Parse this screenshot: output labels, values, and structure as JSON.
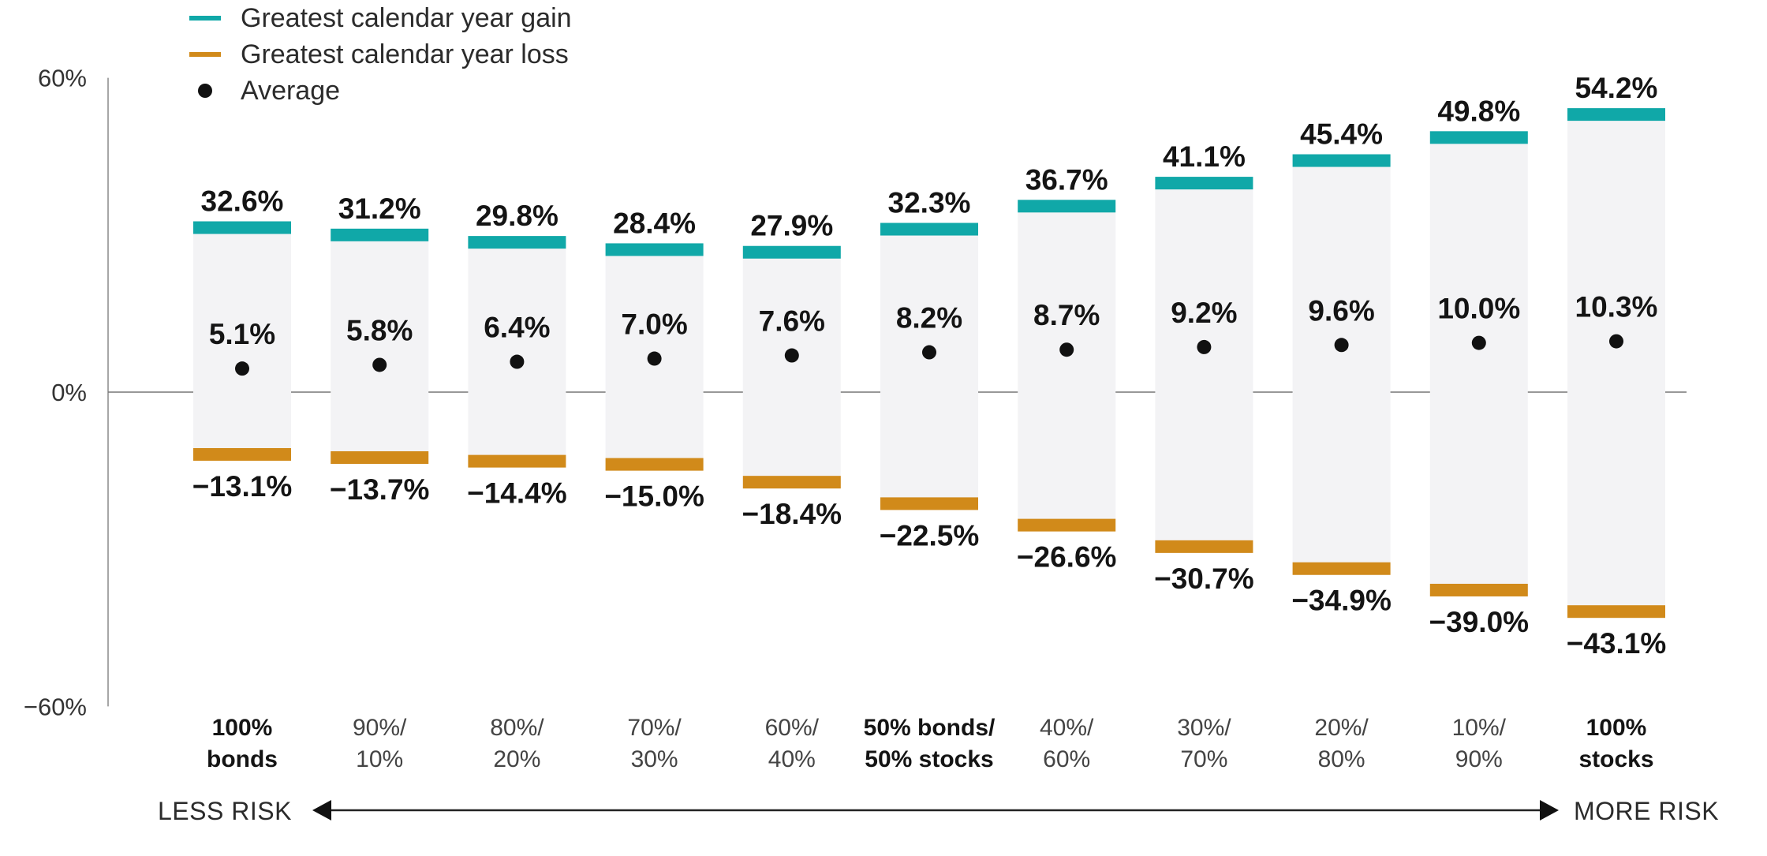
{
  "chart_data": {
    "type": "range-bar",
    "y_axis": {
      "ticks": [
        "60%",
        "0%",
        "−60%"
      ],
      "tick_values": [
        60,
        0,
        -60
      ],
      "ylim": [
        -60,
        60
      ]
    },
    "legend": [
      {
        "key": "gain",
        "label": "Greatest calendar year gain",
        "color": "#10a8a8"
      },
      {
        "key": "loss",
        "label": "Greatest calendar year loss",
        "color": "#d18a1a"
      },
      {
        "key": "avg",
        "label": "Average",
        "color": "#111111"
      }
    ],
    "categories": [
      {
        "line1": "100%",
        "line2": "bonds",
        "bold": true
      },
      {
        "line1": "90%/",
        "line2": "10%",
        "bold": false
      },
      {
        "line1": "80%/",
        "line2": "20%",
        "bold": false
      },
      {
        "line1": "70%/",
        "line2": "30%",
        "bold": false
      },
      {
        "line1": "60%/",
        "line2": "40%",
        "bold": false
      },
      {
        "line1": "50% bonds/",
        "line2": "50% stocks",
        "bold": true
      },
      {
        "line1": "40%/",
        "line2": "60%",
        "bold": false
      },
      {
        "line1": "30%/",
        "line2": "70%",
        "bold": false
      },
      {
        "line1": "20%/",
        "line2": "80%",
        "bold": false
      },
      {
        "line1": "10%/",
        "line2": "90%",
        "bold": false
      },
      {
        "line1": "100%",
        "line2": "stocks",
        "bold": true
      }
    ],
    "series": [
      {
        "key": "gain",
        "values": [
          32.6,
          31.2,
          29.8,
          28.4,
          27.9,
          32.3,
          36.7,
          41.1,
          45.4,
          49.8,
          54.2
        ],
        "labels": [
          "32.6%",
          "31.2%",
          "29.8%",
          "28.4%",
          "27.9%",
          "32.3%",
          "36.7%",
          "41.1%",
          "45.4%",
          "49.8%",
          "54.2%"
        ]
      },
      {
        "key": "avg",
        "values": [
          5.1,
          5.8,
          6.4,
          7.0,
          7.6,
          8.2,
          8.7,
          9.2,
          9.6,
          10.0,
          10.3
        ],
        "labels": [
          "5.1%",
          "5.8%",
          "6.4%",
          "7.0%",
          "7.6%",
          "8.2%",
          "8.7%",
          "9.2%",
          "9.6%",
          "10.0%",
          "10.3%"
        ]
      },
      {
        "key": "loss",
        "values": [
          -13.1,
          -13.7,
          -14.4,
          -15.0,
          -18.4,
          -22.5,
          -26.6,
          -30.7,
          -34.9,
          -39.0,
          -43.1
        ],
        "labels": [
          "−13.1%",
          "−13.7%",
          "−14.4%",
          "−15.0%",
          "−18.4%",
          "−22.5%",
          "−26.6%",
          "−30.7%",
          "−34.9%",
          "−39.0%",
          "−43.1%"
        ]
      }
    ],
    "range_fill_color": "#f3f3f5",
    "risk_axis": {
      "left": "LESS RISK",
      "right": "MORE RISK"
    }
  }
}
